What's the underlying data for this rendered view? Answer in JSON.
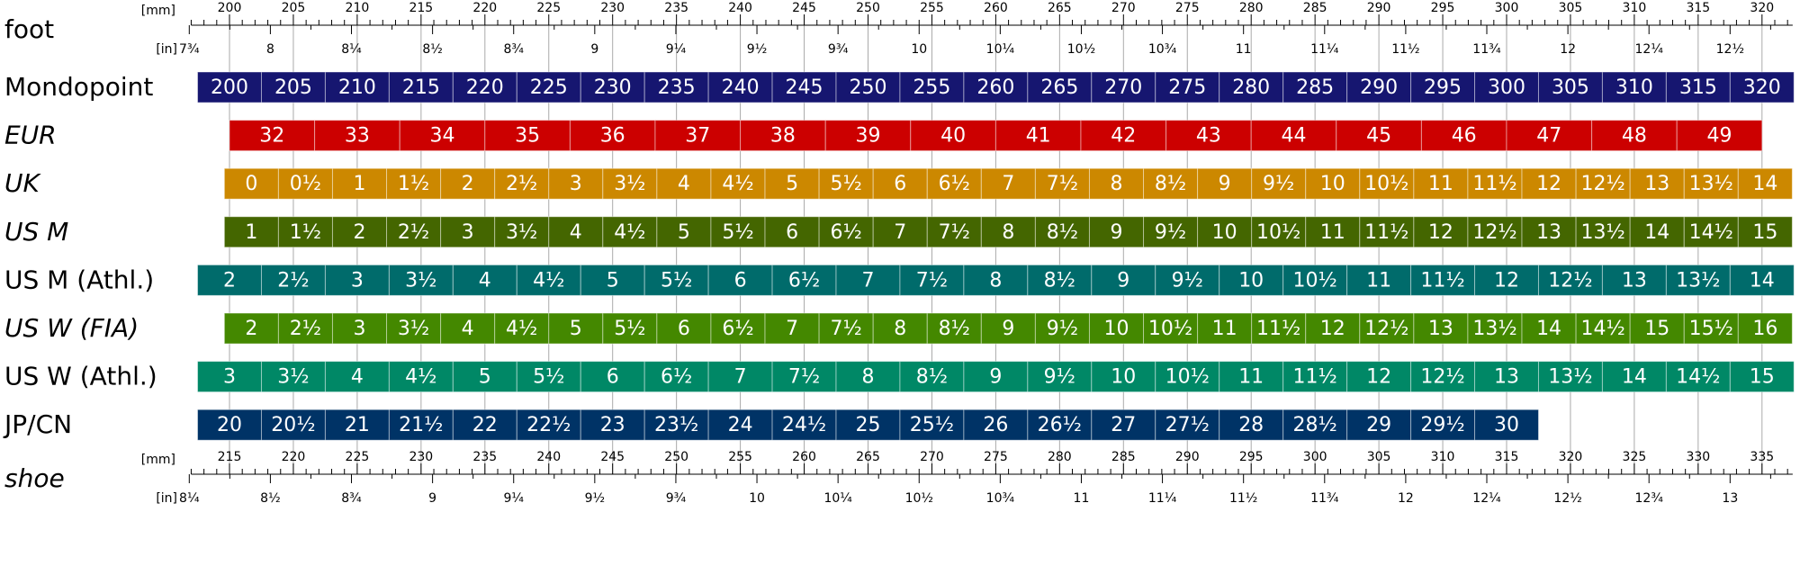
{
  "rulers": {
    "foot": {
      "label": "foot",
      "italic": false,
      "mm_unit": "[mm]",
      "in_unit": "[in]",
      "mm_labels": [
        200,
        205,
        210,
        215,
        220,
        225,
        230,
        235,
        240,
        245,
        250,
        255,
        260,
        265,
        270,
        275,
        280,
        285,
        290,
        295,
        300,
        305,
        310,
        315,
        320
      ],
      "in_labels": [
        "7¾",
        "8",
        "8¼",
        "8½",
        "8¾",
        "9",
        "9¼",
        "9½",
        "9¾",
        "10",
        "10¼",
        "10½",
        "10¾",
        "11",
        "11¼",
        "11½",
        "11¾",
        "12",
        "12¼",
        "12½"
      ]
    },
    "shoe": {
      "label": "shoe",
      "italic": true,
      "mm_unit": "[mm]",
      "in_unit": "[in]",
      "mm_labels": [
        215,
        220,
        225,
        230,
        235,
        240,
        245,
        250,
        255,
        260,
        265,
        270,
        275,
        280,
        285,
        290,
        295,
        300,
        305,
        310,
        315,
        320,
        325,
        330,
        335
      ],
      "in_labels": [
        "8¼",
        "8½",
        "8¾",
        "9",
        "9¼",
        "9½",
        "9¾",
        "10",
        "10¼",
        "10½",
        "10¾",
        "11",
        "11¼",
        "11½",
        "11¾",
        "12",
        "12¼",
        "12½",
        "12¾",
        "13"
      ]
    }
  },
  "rows": [
    {
      "label": "Mondopoint",
      "italic": false,
      "color": "#161670",
      "cells": [
        "200",
        "205",
        "210",
        "215",
        "220",
        "225",
        "230",
        "235",
        "240",
        "245",
        "250",
        "255",
        "260",
        "265",
        "270",
        "275",
        "280",
        "285",
        "290",
        "295",
        "300",
        "305",
        "310",
        "315",
        "320"
      ]
    },
    {
      "label": "EUR",
      "italic": true,
      "color": "#cc0000",
      "cells": [
        "32",
        "33",
        "34",
        "35",
        "36",
        "37",
        "38",
        "39",
        "40",
        "41",
        "42",
        "43",
        "44",
        "45",
        "46",
        "47",
        "48",
        "49"
      ]
    },
    {
      "label": "UK",
      "italic": true,
      "color": "#cc8800",
      "cells": [
        "0",
        "0½",
        "1",
        "1½",
        "2",
        "2½",
        "3",
        "3½",
        "4",
        "4½",
        "5",
        "5½",
        "6",
        "6½",
        "7",
        "7½",
        "8",
        "8½",
        "9",
        "9½",
        "10",
        "10½",
        "11",
        "11½",
        "12",
        "12½",
        "13",
        "13½",
        "14"
      ]
    },
    {
      "label": "US M",
      "italic": true,
      "color": "#446600",
      "cells": [
        "1",
        "1½",
        "2",
        "2½",
        "3",
        "3½",
        "4",
        "4½",
        "5",
        "5½",
        "6",
        "6½",
        "7",
        "7½",
        "8",
        "8½",
        "9",
        "9½",
        "10",
        "10½",
        "11",
        "11½",
        "12",
        "12½",
        "13",
        "13½",
        "14",
        "14½",
        "15"
      ]
    },
    {
      "label": "US M (Athl.)",
      "italic": false,
      "color": "#006b6b",
      "cells": [
        "2",
        "2½",
        "3",
        "3½",
        "4",
        "4½",
        "5",
        "5½",
        "6",
        "6½",
        "7",
        "7½",
        "8",
        "8½",
        "9",
        "9½",
        "10",
        "10½",
        "11",
        "11½",
        "12",
        "12½",
        "13",
        "13½",
        "14"
      ]
    },
    {
      "label": "US W (FIA)",
      "italic": true,
      "color": "#448800",
      "cells": [
        "2",
        "2½",
        "3",
        "3½",
        "4",
        "4½",
        "5",
        "5½",
        "6",
        "6½",
        "7",
        "7½",
        "8",
        "8½",
        "9",
        "9½",
        "10",
        "10½",
        "11",
        "11½",
        "12",
        "12½",
        "13",
        "13½",
        "14",
        "14½",
        "15",
        "15½",
        "16"
      ]
    },
    {
      "label": "US W (Athl.)",
      "italic": false,
      "color": "#008866",
      "cells": [
        "3",
        "3½",
        "4",
        "4½",
        "5",
        "5½",
        "6",
        "6½",
        "7",
        "7½",
        "8",
        "8½",
        "9",
        "9½",
        "10",
        "10½",
        "11",
        "11½",
        "12",
        "12½",
        "13",
        "13½",
        "14",
        "14½",
        "15"
      ]
    },
    {
      "label": "JP/CN",
      "italic": false,
      "color": "#003366",
      "cells": [
        "20",
        "20½",
        "21",
        "21½",
        "22",
        "22½",
        "23",
        "23½",
        "24",
        "24½",
        "25",
        "25½",
        "26",
        "26½",
        "27",
        "27½",
        "28",
        "28½",
        "29",
        "29½",
        "30"
      ]
    }
  ]
}
